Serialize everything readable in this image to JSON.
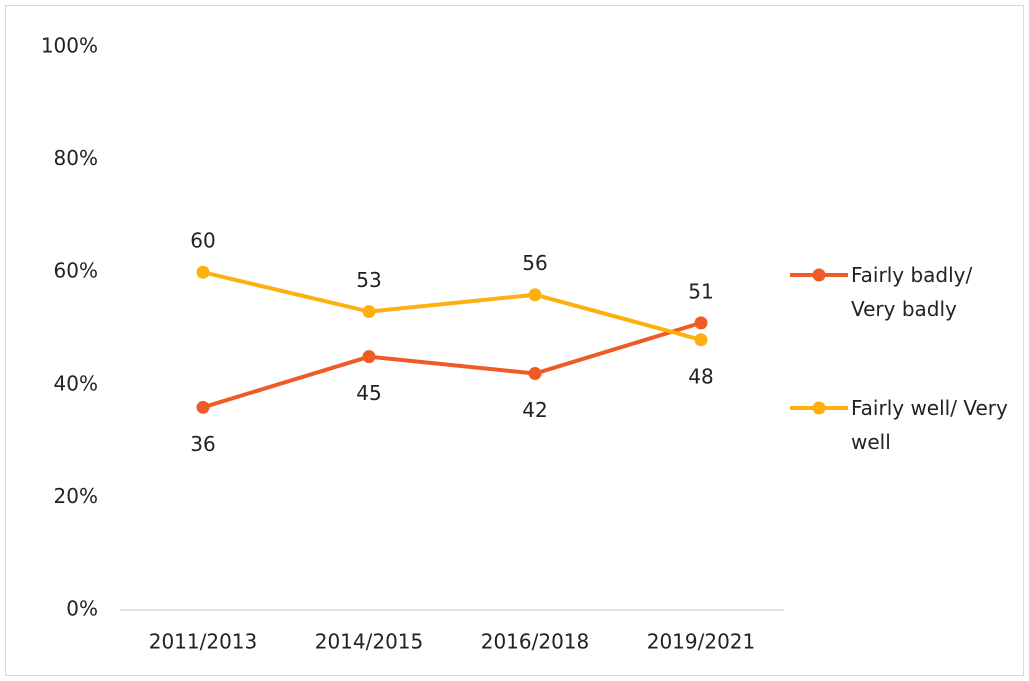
{
  "chart_data": {
    "type": "line",
    "categories": [
      "2011/2013",
      "2014/2015",
      "2016/2018",
      "2019/2021"
    ],
    "series": [
      {
        "name": "Fairly badly/ Very badly",
        "color": "#ef5b25",
        "values": [
          36,
          45,
          42,
          51
        ]
      },
      {
        "name": "Fairly well/ Very well",
        "color": "#fdb00f",
        "values": [
          60,
          53,
          56,
          48
        ]
      }
    ],
    "ylim": [
      0,
      100
    ],
    "yticks": [
      {
        "value": 0,
        "label": "0%"
      },
      {
        "value": 20,
        "label": "20%"
      },
      {
        "value": 40,
        "label": "40%"
      },
      {
        "value": 60,
        "label": "60%"
      },
      {
        "value": 80,
        "label": "80%"
      },
      {
        "value": 100,
        "label": "100%"
      }
    ],
    "grid": false,
    "legend": "right"
  }
}
